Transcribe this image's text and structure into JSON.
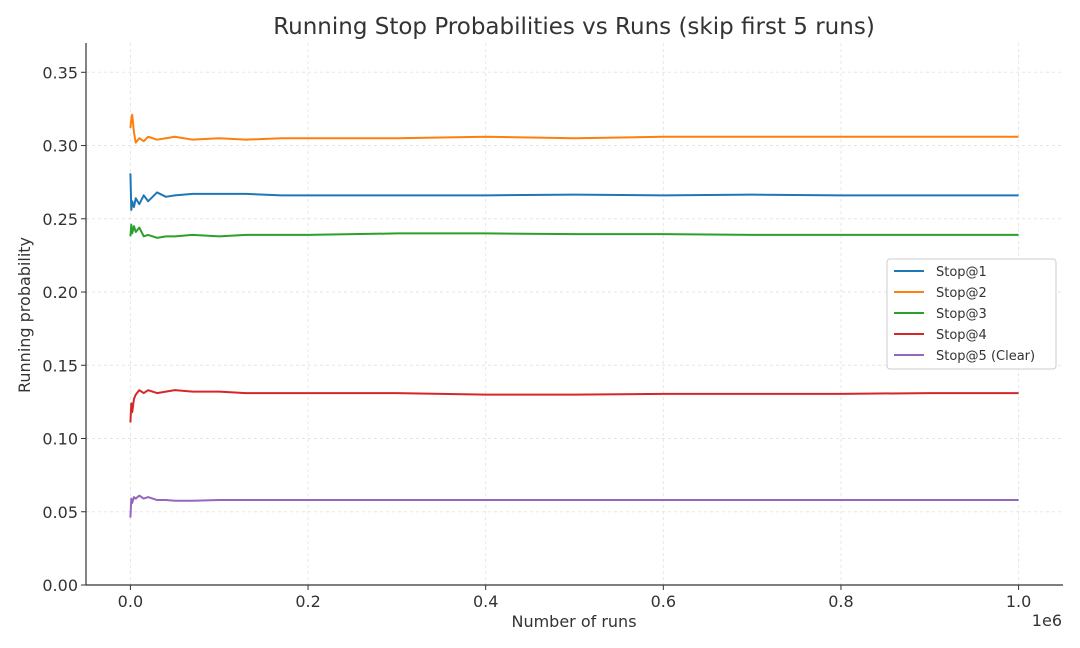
{
  "chart_data": {
    "type": "line",
    "title": "Running Stop Probabilities vs Runs (skip first 5 runs)",
    "xlabel": "Number of runs",
    "ylabel": "Running probability",
    "x_offset_label": "1e6",
    "xlim": [
      -0.05,
      1.05
    ],
    "ylim": [
      0.0,
      0.37
    ],
    "x_ticks": [
      0.0,
      0.2,
      0.4,
      0.6,
      0.8,
      1.0
    ],
    "x_tick_labels": [
      "0.0",
      "0.2",
      "0.4",
      "0.6",
      "0.8",
      "1.0"
    ],
    "y_ticks": [
      0.0,
      0.05,
      0.1,
      0.15,
      0.2,
      0.25,
      0.3,
      0.35
    ],
    "y_tick_labels": [
      "0.00",
      "0.05",
      "0.10",
      "0.15",
      "0.20",
      "0.25",
      "0.30",
      "0.35"
    ],
    "grid": true,
    "legend_position": "center-right",
    "series": [
      {
        "name": "Stop@1",
        "color": "#1f77b4",
        "x": [
          5e-06,
          0.001,
          0.002,
          0.004,
          0.006,
          0.01,
          0.015,
          0.02,
          0.03,
          0.04,
          0.05,
          0.07,
          0.1,
          0.13,
          0.17,
          0.2,
          0.3,
          0.4,
          0.5,
          0.6,
          0.7,
          0.8,
          0.9,
          1.0
        ],
        "y": [
          0.281,
          0.256,
          0.262,
          0.258,
          0.264,
          0.26,
          0.266,
          0.262,
          0.268,
          0.265,
          0.266,
          0.267,
          0.267,
          0.267,
          0.266,
          0.266,
          0.266,
          0.266,
          0.2665,
          0.266,
          0.2665,
          0.266,
          0.266,
          0.266
        ]
      },
      {
        "name": "Stop@2",
        "color": "#ff7f0e",
        "x": [
          5e-06,
          0.001,
          0.002,
          0.004,
          0.006,
          0.01,
          0.015,
          0.02,
          0.03,
          0.04,
          0.05,
          0.07,
          0.1,
          0.13,
          0.17,
          0.2,
          0.3,
          0.4,
          0.5,
          0.6,
          0.7,
          0.8,
          0.9,
          1.0
        ],
        "y": [
          0.312,
          0.318,
          0.321,
          0.309,
          0.302,
          0.305,
          0.303,
          0.306,
          0.304,
          0.305,
          0.306,
          0.304,
          0.305,
          0.304,
          0.305,
          0.305,
          0.305,
          0.306,
          0.305,
          0.306,
          0.306,
          0.306,
          0.306,
          0.306
        ]
      },
      {
        "name": "Stop@3",
        "color": "#2ca02c",
        "x": [
          5e-06,
          0.001,
          0.002,
          0.004,
          0.006,
          0.01,
          0.015,
          0.02,
          0.03,
          0.04,
          0.05,
          0.07,
          0.1,
          0.13,
          0.17,
          0.2,
          0.3,
          0.4,
          0.5,
          0.6,
          0.7,
          0.8,
          0.9,
          1.0
        ],
        "y": [
          0.238,
          0.246,
          0.24,
          0.245,
          0.241,
          0.244,
          0.238,
          0.239,
          0.237,
          0.238,
          0.238,
          0.239,
          0.238,
          0.239,
          0.239,
          0.239,
          0.24,
          0.24,
          0.2395,
          0.2395,
          0.239,
          0.239,
          0.239,
          0.239
        ]
      },
      {
        "name": "Stop@4",
        "color": "#d62728",
        "x": [
          5e-06,
          0.001,
          0.002,
          0.004,
          0.006,
          0.01,
          0.015,
          0.02,
          0.03,
          0.04,
          0.05,
          0.07,
          0.1,
          0.13,
          0.17,
          0.2,
          0.3,
          0.4,
          0.5,
          0.6,
          0.7,
          0.8,
          0.9,
          1.0
        ],
        "y": [
          0.111,
          0.124,
          0.118,
          0.127,
          0.13,
          0.133,
          0.131,
          0.133,
          0.131,
          0.132,
          0.133,
          0.132,
          0.132,
          0.131,
          0.131,
          0.131,
          0.131,
          0.13,
          0.13,
          0.1305,
          0.1305,
          0.1305,
          0.131,
          0.131
        ]
      },
      {
        "name": "Stop@5 (Clear)",
        "color": "#9467bd",
        "x": [
          5e-06,
          0.001,
          0.002,
          0.004,
          0.006,
          0.01,
          0.015,
          0.02,
          0.03,
          0.04,
          0.05,
          0.07,
          0.1,
          0.13,
          0.17,
          0.2,
          0.3,
          0.4,
          0.5,
          0.6,
          0.7,
          0.8,
          0.9,
          1.0
        ],
        "y": [
          0.046,
          0.059,
          0.056,
          0.06,
          0.059,
          0.061,
          0.059,
          0.06,
          0.058,
          0.058,
          0.0575,
          0.0575,
          0.058,
          0.058,
          0.058,
          0.058,
          0.058,
          0.058,
          0.058,
          0.058,
          0.058,
          0.058,
          0.058,
          0.058
        ]
      }
    ]
  }
}
